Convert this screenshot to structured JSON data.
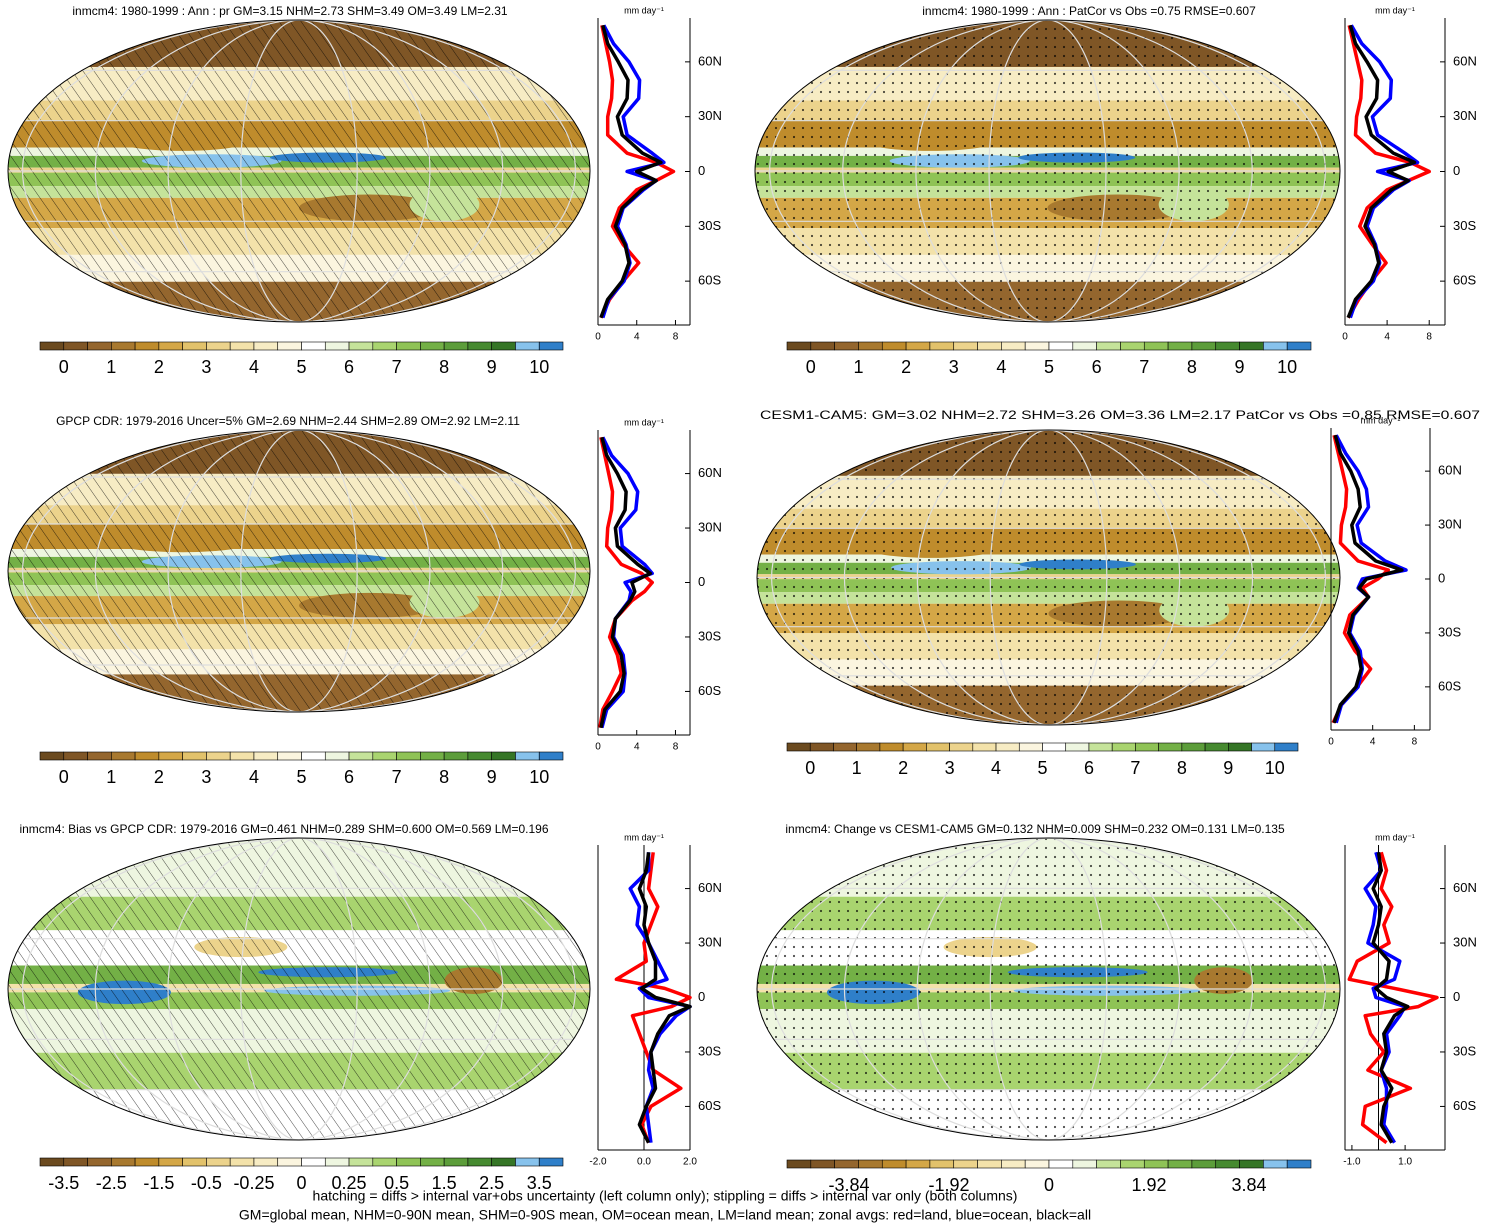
{
  "chart_data": [
    {
      "type": "map",
      "title": "inmcm4: 1980-1999 : Ann : pr GM=3.15 NHM=2.73 SHM=3.49 OM=3.49 LM=2.31",
      "overlay": "hatching",
      "style": "precip",
      "colorbar": {
        "colors": [
          "#6b4a1f",
          "#7f5626",
          "#94662e",
          "#a8792f",
          "#bf8c2c",
          "#d4a747",
          "#e2c26b",
          "#ecd38c",
          "#f3e2aa",
          "#f7ecc4",
          "#fbf5df",
          "#ffffff",
          "#eef6e0",
          "#c5e39a",
          "#a9d46f",
          "#8fc356",
          "#73b046",
          "#5c9d3a",
          "#468a30",
          "#357526",
          "#87c2ec",
          "#2f7fc9"
        ],
        "clim": [
          -0.5,
          10.5
        ],
        "ticks": [
          0,
          1,
          2,
          3,
          4,
          5,
          6,
          7,
          8,
          9,
          10
        ]
      }
    },
    {
      "type": "line",
      "xlabel": "mm day⁻¹",
      "xlim": [
        0,
        9.5
      ],
      "xticks": [
        0,
        4,
        8
      ],
      "ylim": [
        -84,
        84
      ],
      "yticks": [
        {
          "value": 60,
          "label": "60N"
        },
        {
          "value": 30,
          "label": "30N"
        },
        0,
        {
          "value": -30,
          "label": "30S"
        },
        {
          "value": -60,
          "label": "60S"
        }
      ],
      "lat": [
        -80,
        -70,
        -60,
        -50,
        -40,
        -30,
        -20,
        -10,
        -5,
        0,
        5,
        10,
        20,
        30,
        40,
        50,
        60,
        70,
        80
      ],
      "series": [
        {
          "color": "#ff0000",
          "values": [
            0.3,
            1.2,
            2.6,
            4.2,
            2.6,
            1.5,
            2.2,
            4,
            6,
            7.8,
            6,
            3,
            1,
            1,
            1.4,
            1.5,
            1.2,
            0.8,
            0.4
          ]
        },
        {
          "color": "#0000ff",
          "values": [
            0.5,
            1.1,
            2.7,
            3.3,
            2.9,
            2,
            2.6,
            4.7,
            6,
            3,
            6.8,
            5.6,
            3,
            2.6,
            4.2,
            4.3,
            3.2,
            1.6,
            0.6
          ]
        },
        {
          "color": "#000000",
          "values": [
            0.3,
            1,
            2.5,
            3.2,
            2.8,
            1.8,
            2.5,
            4.5,
            6,
            4,
            6.5,
            4.6,
            2.5,
            2,
            3,
            3.1,
            2.1,
            1,
            0.5
          ]
        }
      ]
    },
    {
      "type": "map",
      "title": "inmcm4: 1980-1999 : Ann : PatCor vs Obs =0.75 RMSE=0.607",
      "overlay": "stippling",
      "style": "precip",
      "colorbar": {
        "colors": [
          "#6b4a1f",
          "#7f5626",
          "#94662e",
          "#a8792f",
          "#bf8c2c",
          "#d4a747",
          "#e2c26b",
          "#ecd38c",
          "#f3e2aa",
          "#f7ecc4",
          "#fbf5df",
          "#ffffff",
          "#eef6e0",
          "#c5e39a",
          "#a9d46f",
          "#8fc356",
          "#73b046",
          "#5c9d3a",
          "#468a30",
          "#357526",
          "#87c2ec",
          "#2f7fc9"
        ],
        "clim": [
          -0.5,
          10.5
        ],
        "ticks": [
          0,
          1,
          2,
          3,
          4,
          5,
          6,
          7,
          8,
          9,
          10
        ]
      }
    },
    {
      "type": "line",
      "xlabel": "mm day⁻¹",
      "xlim": [
        0,
        9.5
      ],
      "xticks": [
        0,
        4,
        8
      ],
      "ylim": [
        -84,
        84
      ],
      "yticks": [
        {
          "value": 60,
          "label": "60N"
        },
        {
          "value": 30,
          "label": "30N"
        },
        0,
        {
          "value": -30,
          "label": "30S"
        },
        {
          "value": -60,
          "label": "60S"
        }
      ],
      "lat": [
        -80,
        -70,
        -60,
        -50,
        -40,
        -30,
        -20,
        -10,
        -5,
        0,
        5,
        10,
        20,
        30,
        40,
        50,
        60,
        70,
        80
      ],
      "series": [
        {
          "color": "#ff0000",
          "values": [
            0.3,
            1.3,
            2.5,
            3.9,
            2.6,
            1.4,
            2.1,
            4,
            6,
            8,
            6.2,
            2.9,
            1,
            1.1,
            1.5,
            1.6,
            1.2,
            0.8,
            0.4
          ]
        },
        {
          "color": "#0000ff",
          "values": [
            0.5,
            1.1,
            2.7,
            3.3,
            2.9,
            2.1,
            2.7,
            4.6,
            6.1,
            3.1,
            6.9,
            5.7,
            3.1,
            2.6,
            4.3,
            4.4,
            3.3,
            1.6,
            0.6
          ]
        },
        {
          "color": "#000000",
          "values": [
            0.3,
            1,
            2.5,
            3.2,
            2.8,
            1.9,
            2.5,
            4.4,
            6,
            4.1,
            6.6,
            4.6,
            2.5,
            2,
            3,
            3.1,
            2.1,
            1,
            0.5
          ]
        }
      ]
    },
    {
      "type": "map",
      "title": "GPCP CDR: 1979-2016 Uncer=5% GM=2.69 NHM=2.44 SHM=2.89 OM=2.92 LM=2.11",
      "overlay": "hatching",
      "style": "precip",
      "colorbar": {
        "colors": [
          "#6b4a1f",
          "#7f5626",
          "#94662e",
          "#a8792f",
          "#bf8c2c",
          "#d4a747",
          "#e2c26b",
          "#ecd38c",
          "#f3e2aa",
          "#f7ecc4",
          "#fbf5df",
          "#ffffff",
          "#eef6e0",
          "#c5e39a",
          "#a9d46f",
          "#8fc356",
          "#73b046",
          "#5c9d3a",
          "#468a30",
          "#357526",
          "#87c2ec",
          "#2f7fc9"
        ],
        "clim": [
          -0.5,
          10.5
        ],
        "ticks": [
          0,
          1,
          2,
          3,
          4,
          5,
          6,
          7,
          8,
          9,
          10
        ]
      }
    },
    {
      "type": "line",
      "xlabel": "mm day⁻¹",
      "xlim": [
        0,
        9.5
      ],
      "xticks": [
        0,
        4,
        8
      ],
      "ylim": [
        -84,
        84
      ],
      "yticks": [
        {
          "value": 60,
          "label": "60N"
        },
        {
          "value": 30,
          "label": "30N"
        },
        0,
        {
          "value": -30,
          "label": "30S"
        },
        {
          "value": -60,
          "label": "60S"
        }
      ],
      "lat": [
        -80,
        -70,
        -60,
        -50,
        -40,
        -30,
        -20,
        -10,
        -5,
        0,
        5,
        10,
        20,
        30,
        40,
        50,
        60,
        70,
        80
      ],
      "series": [
        {
          "color": "#ff0000",
          "values": [
            0.2,
            0.5,
            1.5,
            2.4,
            2,
            1.2,
            1.8,
            3.5,
            4.8,
            5.6,
            4.5,
            2.4,
            0.9,
            1,
            1.4,
            1.5,
            1.1,
            0.7,
            0.3
          ]
        },
        {
          "color": "#0000ff",
          "values": [
            0.4,
            0.9,
            2.6,
            2.8,
            2.6,
            1.6,
            1.8,
            3.2,
            3.4,
            2.8,
            5.6,
            4.8,
            2.5,
            2.3,
            3.9,
            4.1,
            3.1,
            1.4,
            0.5
          ]
        },
        {
          "color": "#000000",
          "values": [
            0.3,
            0.7,
            2.3,
            2.7,
            2.4,
            1.5,
            1.8,
            3.3,
            3.8,
            3.5,
            5.4,
            4.1,
            2,
            1.8,
            2.8,
            2.9,
            2,
            0.9,
            0.4
          ]
        }
      ]
    },
    {
      "type": "map",
      "title": "CESM1-CAM5: GM=3.02 NHM=2.72 SHM=3.26 OM=3.36 LM=2.17 PatCor vs Obs =0.85 RMSE=0.607",
      "overlay": "stippling",
      "style": "precip",
      "colorbar": {
        "colors": [
          "#6b4a1f",
          "#7f5626",
          "#94662e",
          "#a8792f",
          "#bf8c2c",
          "#d4a747",
          "#e2c26b",
          "#ecd38c",
          "#f3e2aa",
          "#f7ecc4",
          "#fbf5df",
          "#ffffff",
          "#eef6e0",
          "#c5e39a",
          "#a9d46f",
          "#8fc356",
          "#73b046",
          "#5c9d3a",
          "#468a30",
          "#357526",
          "#87c2ec",
          "#2f7fc9"
        ],
        "clim": [
          -0.5,
          10.5
        ],
        "ticks": [
          0,
          1,
          2,
          3,
          4,
          5,
          6,
          7,
          8,
          9,
          10
        ]
      }
    },
    {
      "type": "line",
      "xlabel": "mm day⁻¹",
      "xlim": [
        0,
        9.5
      ],
      "xticks": [
        0,
        4,
        8
      ],
      "ylim": [
        -84,
        84
      ],
      "yticks": [
        {
          "value": 60,
          "label": "60N"
        },
        {
          "value": 30,
          "label": "30N"
        },
        0,
        {
          "value": -30,
          "label": "30S"
        },
        {
          "value": -60,
          "label": "60S"
        }
      ],
      "lat": [
        -80,
        -70,
        -60,
        -50,
        -40,
        -30,
        -20,
        -10,
        -5,
        0,
        5,
        10,
        20,
        30,
        40,
        50,
        60,
        70,
        80
      ],
      "series": [
        {
          "color": "#ff0000",
          "values": [
            0.2,
            1,
            2.5,
            3.8,
            2.3,
            1.3,
            1.8,
            3.6,
            3,
            4.5,
            5.5,
            2.6,
            0.9,
            1,
            1.4,
            1.5,
            1.1,
            0.7,
            0.3
          ]
        },
        {
          "color": "#0000ff",
          "values": [
            0.5,
            1,
            2.6,
            3,
            2.8,
            1.8,
            2.2,
            3.6,
            2.6,
            3,
            7.2,
            5.2,
            2.9,
            2.5,
            3.6,
            3.4,
            2.6,
            1.4,
            0.5
          ]
        },
        {
          "color": "#000000",
          "values": [
            0.3,
            0.9,
            2.4,
            2.9,
            2.6,
            1.7,
            2.1,
            3.6,
            2.7,
            3.4,
            6.8,
            4.3,
            2.3,
            2,
            2.8,
            2.6,
            1.9,
            0.9,
            0.4
          ]
        }
      ]
    },
    {
      "type": "map",
      "title": "inmcm4: Bias vs GPCP CDR: 1979-2016 GM=0.461 NHM=0.289 SHM=0.600 OM=0.569 LM=0.196",
      "overlay": "hatching",
      "style": "diff",
      "colorbar": {
        "colors": [
          "#6b4a1f",
          "#7f5626",
          "#94662e",
          "#a8792f",
          "#bf8c2c",
          "#d4a747",
          "#e2c26b",
          "#ecd38c",
          "#f3e2aa",
          "#f7ecc4",
          "#fbf5df",
          "#ffffff",
          "#eef6e0",
          "#c5e39a",
          "#a9d46f",
          "#8fc356",
          "#73b046",
          "#5c9d3a",
          "#468a30",
          "#357526",
          "#87c2ec",
          "#2f7fc9"
        ],
        "ticks": [
          -3.5,
          -2.5,
          -1.5,
          -0.5,
          -0.25,
          0,
          0.25,
          0.5,
          1.5,
          2.5,
          3.5
        ]
      }
    },
    {
      "type": "line",
      "xlabel": "mm day⁻¹",
      "xlim": [
        -2,
        2
      ],
      "xticks": [
        {
          "value": -2,
          "label": "-2.0"
        },
        {
          "value": 0,
          "label": "0.0"
        },
        {
          "value": 2,
          "label": "2.0"
        }
      ],
      "ylim": [
        -84,
        84
      ],
      "yticks": [
        {
          "value": 60,
          "label": "60N"
        },
        {
          "value": 30,
          "label": "30N"
        },
        0,
        {
          "value": -30,
          "label": "30S"
        },
        {
          "value": -60,
          "label": "60S"
        }
      ],
      "lat": [
        -80,
        -70,
        -60,
        -50,
        -40,
        -30,
        -20,
        -10,
        -5,
        0,
        5,
        10,
        20,
        30,
        40,
        50,
        60,
        70,
        80
      ],
      "series": [
        {
          "color": "#ff0000",
          "values": [
            0.2,
            -0.1,
            0.3,
            1.6,
            0.4,
            0.1,
            -0.2,
            -0.5,
            1.2,
            2,
            0.9,
            -1.2,
            0.1,
            0,
            0.3,
            0.6,
            0.2,
            0.3,
            0.4
          ]
        },
        {
          "color": "#0000ff",
          "values": [
            0.3,
            0.2,
            0.1,
            0.4,
            0.2,
            0.3,
            0.7,
            1.4,
            2,
            0.2,
            -0.2,
            1,
            0.6,
            0.2,
            -0.3,
            -0.2,
            -0.6,
            0.2,
            0.2
          ]
        },
        {
          "color": "#000000",
          "values": [
            0.2,
            -0.2,
            0.1,
            0.5,
            0.4,
            0.3,
            0.6,
            1.1,
            2,
            0.5,
            -0.1,
            0.5,
            0.5,
            0.2,
            0,
            0.1,
            -0.2,
            0.1,
            0.2
          ]
        }
      ]
    },
    {
      "type": "map",
      "title": "inmcm4: Change vs CESM1-CAM5 GM=0.132 NHM=0.009 SHM=0.232 OM=0.131 LM=0.135",
      "overlay": "stippling",
      "style": "diff",
      "colorbar": {
        "colors": [
          "#6b4a1f",
          "#7f5626",
          "#94662e",
          "#a8792f",
          "#bf8c2c",
          "#d4a747",
          "#e2c26b",
          "#ecd38c",
          "#f3e2aa",
          "#f7ecc4",
          "#fbf5df",
          "#ffffff",
          "#eef6e0",
          "#c5e39a",
          "#a9d46f",
          "#8fc356",
          "#73b046",
          "#5c9d3a",
          "#468a30",
          "#357526",
          "#87c2ec",
          "#2f7fc9"
        ],
        "clim": [
          -5.03,
          5.03
        ],
        "ticks": [
          -3.84,
          -1.92,
          0,
          1.92,
          3.84
        ]
      }
    },
    {
      "type": "line",
      "xlabel": "mm day⁻¹",
      "xlim": [
        -1.26,
        2.5
      ],
      "xticks": [
        {
          "value": -1,
          "label": "-1.0"
        },
        {
          "value": 1,
          "label": "1.0"
        }
      ],
      "ylim": [
        -84,
        84
      ],
      "yticks": [
        {
          "value": 60,
          "label": "60N"
        },
        {
          "value": 30,
          "label": "30N"
        },
        0,
        {
          "value": -30,
          "label": "30S"
        },
        {
          "value": -60,
          "label": "60S"
        }
      ],
      "lat": [
        -80,
        -70,
        -60,
        -50,
        -40,
        -30,
        -20,
        -10,
        -5,
        0,
        5,
        10,
        20,
        30,
        40,
        50,
        60,
        70,
        80
      ],
      "series": [
        {
          "color": "#ff0000",
          "values": [
            0.3,
            -0.6,
            -0.5,
            1.2,
            -0.4,
            0.2,
            -0.3,
            -0.5,
            1.5,
            2.2,
            0.6,
            -1.1,
            -0.8,
            0.4,
            0.2,
            0.5,
            0.1,
            0.3,
            0.1
          ]
        },
        {
          "color": "#0000ff",
          "values": [
            0.6,
            0.2,
            0.3,
            0.3,
            0.1,
            0.4,
            0.3,
            0.8,
            1,
            -0.1,
            -0.2,
            0.6,
            0.8,
            -0.4,
            -0.2,
            -0.1,
            -0.5,
            0.1,
            -0.1
          ]
        },
        {
          "color": "#000000",
          "values": [
            0.5,
            0.1,
            0.2,
            0.5,
            0.1,
            0.3,
            0.2,
            0.6,
            1.1,
            0.3,
            -0.1,
            0.3,
            0.4,
            -0.2,
            0,
            0.1,
            -0.2,
            0.1,
            0
          ]
        }
      ]
    }
  ],
  "notes": [
    "hatching = diffs > internal var+obs uncertainty (left column only); stippling = diffs > internal var only (both columns)",
    "GM=global mean, NHM=0-90N mean, SHM=0-90S mean, OM=ocean mean, LM=land mean; zonal avgs: red=land, blue=ocean, black=all"
  ]
}
